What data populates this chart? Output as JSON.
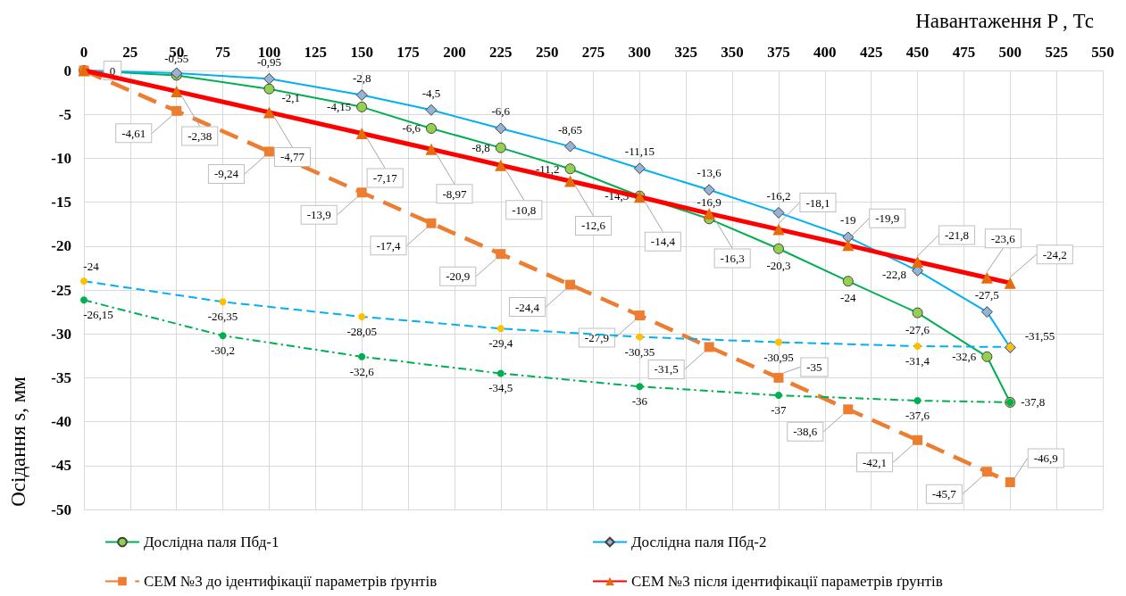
{
  "chart_data": {
    "type": "line",
    "xlabel": "Навантаження P , Тс",
    "ylabel": "Осідання s, мм",
    "xlim": [
      0,
      550
    ],
    "xticks": [
      0,
      25,
      50,
      75,
      100,
      125,
      150,
      175,
      200,
      225,
      250,
      275,
      300,
      325,
      350,
      375,
      400,
      425,
      450,
      475,
      500,
      525,
      550
    ],
    "ylim": [
      -50,
      0
    ],
    "yticks": [
      -50,
      -45,
      -40,
      -35,
      -30,
      -25,
      -20,
      -15,
      -10,
      -5,
      0
    ],
    "grid": true,
    "legend": "bottom",
    "series": [
      {
        "name": "Дослідна паля Пбд-1",
        "color": "#00b050",
        "colors": [
          "#92d050",
          "#92d050",
          "#92d050",
          "#92d050",
          "#92d050",
          "#92d050",
          "#92d050",
          "#92d050",
          "#92d050",
          "#92d050",
          "#92d050",
          "#92d050",
          "#92d050",
          "#92d050"
        ],
        "marker": "circle",
        "line_style": "solid",
        "x": [
          0,
          50,
          100,
          150,
          187.5,
          225,
          262.5,
          300,
          337.5,
          375,
          412.5,
          450,
          487.5,
          500
        ],
        "values": [
          0,
          -0.55,
          -2.1,
          -4.15,
          -6.6,
          -8.8,
          -11.2,
          -14.3,
          -16.9,
          -20.3,
          -24,
          -27.6,
          -32.6,
          -37.8
        ],
        "value_labels": [
          null,
          "-0,55",
          "-2,1",
          "-4,15",
          "-6,6",
          "-8,8",
          "-11,2",
          "-14,3",
          "-16,9",
          "-20,3",
          "-24",
          "-27,6",
          "-32,6",
          "-37,8"
        ]
      },
      {
        "name": "Дослідна паля Пбд-2",
        "color": "#00b0f0",
        "colors": [
          "#95b3d7",
          "#95b3d7",
          "#95b3d7",
          "#95b3d7",
          "#95b3d7",
          "#95b3d7",
          "#95b3d7",
          "#95b3d7",
          "#95b3d7",
          "#95b3d7",
          "#95b3d7",
          "#95b3d7",
          "#95b3d7",
          "#95b3d7"
        ],
        "marker": "diamond",
        "line_style": "solid",
        "x": [
          0,
          50,
          100,
          150,
          187.5,
          225,
          262.5,
          300,
          337.5,
          375,
          412.5,
          450,
          487.5,
          500
        ],
        "values": [
          0,
          -0.3,
          -0.95,
          -2.8,
          -4.5,
          -6.6,
          -8.65,
          -11.15,
          -13.6,
          -16.2,
          -19,
          -22.8,
          -27.5,
          -31.55
        ],
        "value_labels": [
          null,
          null,
          "-0,95",
          "-2,8",
          "-4,5",
          "-6,6",
          "-8,65",
          "-11,15",
          "-13,6",
          "-16,2",
          "-19",
          "-22,8",
          "-27,5",
          "-31,55"
        ]
      },
      {
        "name": "СЕМ №3 до ідентифікації параметрів ґрунтів",
        "color": "#ed7d31",
        "marker": "square",
        "line_style": "dashed",
        "x": [
          0,
          50,
          100,
          150,
          187.5,
          225,
          262.5,
          300,
          337.5,
          375,
          412.5,
          450,
          487.5,
          500
        ],
        "values": [
          0,
          -4.61,
          -9.24,
          -13.9,
          -17.4,
          -20.9,
          -24.4,
          -27.9,
          -31.5,
          -35,
          -38.6,
          -42.1,
          -45.7,
          -46.9
        ],
        "value_labels": [
          "0",
          "-4,61",
          "-9,24",
          "-13,9",
          "-17,4",
          "-20,9",
          "-24,4",
          "-27,9",
          "-31,5",
          "-35",
          "-38,6",
          "-42,1",
          "-45,7",
          "-46,9"
        ]
      },
      {
        "name": "СЕМ №3 після ідентифікації параметрів ґрунтів",
        "color": "#ff0000",
        "colors": [
          "#e46c0a",
          "#e46c0a",
          "#e46c0a",
          "#e46c0a",
          "#e46c0a",
          "#e46c0a",
          "#e46c0a",
          "#e46c0a",
          "#e46c0a",
          "#e46c0a",
          "#e46c0a",
          "#e46c0a",
          "#e46c0a",
          "#e46c0a"
        ],
        "marker": "triangle",
        "line_style": "solid",
        "x": [
          0,
          50,
          100,
          150,
          187.5,
          225,
          262.5,
          300,
          337.5,
          375,
          412.5,
          450,
          487.5,
          500
        ],
        "values": [
          0,
          -2.38,
          -4.77,
          -7.17,
          -8.97,
          -10.8,
          -12.6,
          -14.4,
          -16.3,
          -18.1,
          -19.9,
          -21.8,
          -23.6,
          -24.2
        ],
        "value_labels": [
          null,
          "-2,38",
          "-4,77",
          "-7,17",
          "-8,97",
          "-10,8",
          "-12,6",
          "-14,4",
          "-16,3",
          "-18,1",
          "-19,9",
          "-21,8",
          "-23,6",
          "-24,2"
        ]
      },
      {
        "color": "#00b0f0",
        "colors": [
          "#ffc000",
          "#ffc000",
          "#ffc000",
          "#ffc000",
          "#ffc000",
          "#ffc000",
          "#ffc000",
          "#ffc000"
        ],
        "marker": "circle",
        "line_style": "dashed",
        "x": [
          0,
          75,
          150,
          225,
          300,
          375,
          450,
          500
        ],
        "values": [
          -24,
          -26.35,
          -28.05,
          -29.4,
          -30.35,
          -30.95,
          -31.4,
          -31.5
        ],
        "value_labels": [
          "-24",
          "-26,35",
          "-28,05",
          "-29,4",
          "-30,35",
          "-30,95",
          "-31,4",
          null
        ]
      },
      {
        "color": "#00b050",
        "marker": "circle",
        "line_style": "dashdot",
        "x": [
          0,
          75,
          150,
          225,
          300,
          375,
          450,
          500
        ],
        "values": [
          -26.15,
          -30.2,
          -32.6,
          -34.5,
          -36,
          -37,
          -37.6,
          -37.8
        ],
        "value_labels": [
          "-26,15",
          "-30,2",
          "-32,6",
          "-34,5",
          "-36",
          "-37",
          "-37,6",
          null
        ]
      }
    ]
  }
}
